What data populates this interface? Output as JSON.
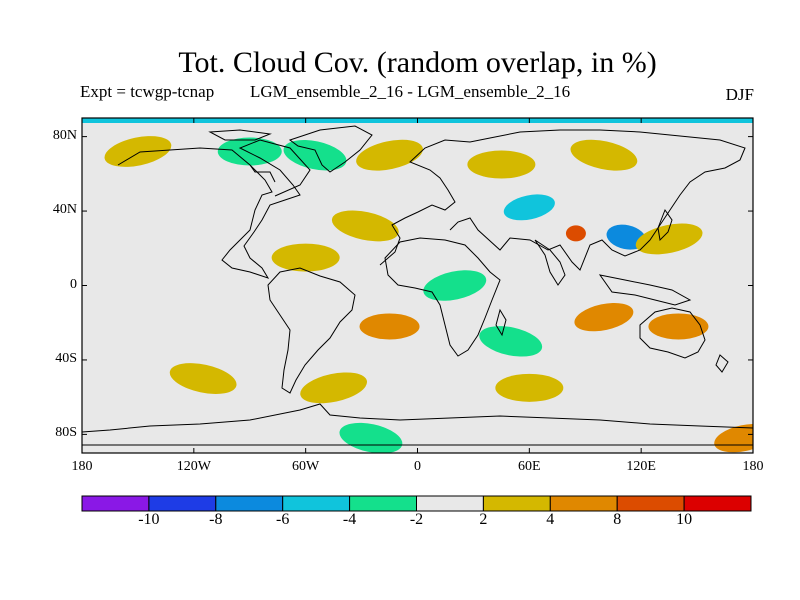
{
  "title": "Tot. Cloud Cov. (random overlap, in %)",
  "experiment": "Expt = tcwgp-tcnap",
  "ensemble": "LGM_ensemble_2_16 - LGM_ensemble_2_16",
  "season": "DJF",
  "lat_ticks": [
    "80N",
    "40N",
    "0",
    "40S",
    "80S"
  ],
  "lon_ticks": [
    "180",
    "120W",
    "60W",
    "0",
    "60E",
    "120E",
    "180"
  ],
  "colorbar": {
    "labels": [
      "-10",
      "-8",
      "-6",
      "-4",
      "-2",
      "2",
      "4",
      "8",
      "10"
    ],
    "colors": [
      "#8a18e6",
      "#1e3ce6",
      "#0c8ade",
      "#10c4dc",
      "#14e08c",
      "#e8e8e8",
      "#d4b800",
      "#e08800",
      "#dc4c00",
      "#dc0000"
    ]
  },
  "chart_data": {
    "type": "map",
    "projection": "equirectangular",
    "lon_range": [
      -180,
      180
    ],
    "lat_range": [
      -90,
      90
    ],
    "contour_levels": [
      -10,
      -8,
      -6,
      -4,
      -2,
      2,
      4,
      8,
      10
    ],
    "background_level": "-2 to 2",
    "anomalies": [
      {
        "lon": -150,
        "lat": 72,
        "range": "2 to 4"
      },
      {
        "lon": -90,
        "lat": 72,
        "range": "-4 to -2"
      },
      {
        "lon": -55,
        "lat": 70,
        "range": "-4 to -2"
      },
      {
        "lon": -15,
        "lat": 70,
        "range": "2 to 4"
      },
      {
        "lon": 45,
        "lat": 65,
        "range": "2 to 4"
      },
      {
        "lon": 100,
        "lat": 70,
        "range": "2 to 4"
      },
      {
        "lon": 60,
        "lat": 42,
        "range": "-6 to -4"
      },
      {
        "lon": 85,
        "lat": 28,
        "range": "8 to 10"
      },
      {
        "lon": 112,
        "lat": 26,
        "range": "-8 to -6"
      },
      {
        "lon": 135,
        "lat": 25,
        "range": "2 to 4"
      },
      {
        "lon": -60,
        "lat": 15,
        "range": "2 to 4"
      },
      {
        "lon": -28,
        "lat": 32,
        "range": "2 to 4"
      },
      {
        "lon": 20,
        "lat": 0,
        "range": "-4 to -2"
      },
      {
        "lon": -15,
        "lat": -22,
        "range": "4 to 8"
      },
      {
        "lon": 50,
        "lat": -30,
        "range": "-4 to -2"
      },
      {
        "lon": 100,
        "lat": -17,
        "range": "4 to 8"
      },
      {
        "lon": 140,
        "lat": -22,
        "range": "4 to 8"
      },
      {
        "lon": -115,
        "lat": -50,
        "range": "2 to 4"
      },
      {
        "lon": -45,
        "lat": -55,
        "range": "2 to 4"
      },
      {
        "lon": 60,
        "lat": -55,
        "range": "2 to 4"
      },
      {
        "lon": -25,
        "lat": -82,
        "range": "-4 to -2"
      },
      {
        "lon": 175,
        "lat": -82,
        "range": "4 to 8"
      },
      {
        "lon": 0,
        "lat": 89,
        "range": "-6 to -4"
      }
    ]
  }
}
